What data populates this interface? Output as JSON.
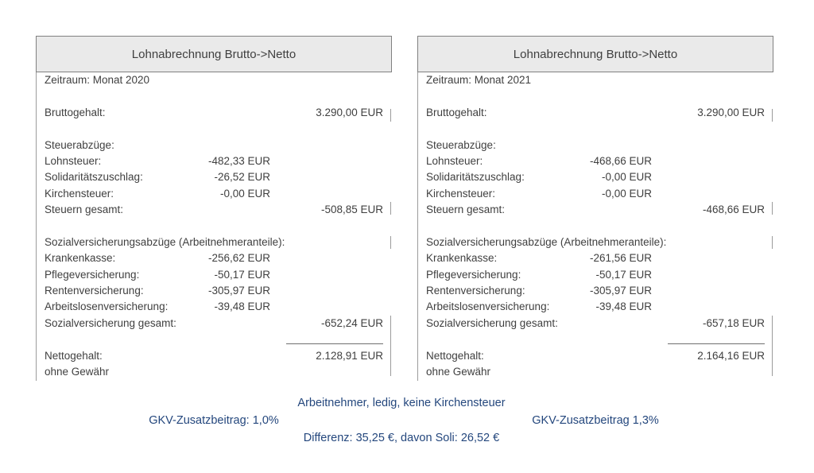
{
  "colors": {
    "annotation_blue": "#24477d",
    "header_bg": "#eaeaea",
    "border_gray": "#808080",
    "text_gray": "#3f3f3f"
  },
  "panels": [
    {
      "title": "Lohnabrechnung Brutto->Netto",
      "period": "Zeitraum: Monat 2020",
      "gross": {
        "label": "Bruttogehalt:",
        "value": "3.290,00 EUR"
      },
      "tax_section": {
        "header": "Steuerabzüge:",
        "items": [
          {
            "label": "Lohnsteuer:",
            "value": "-482,33 EUR"
          },
          {
            "label": "Solidaritätszuschlag:",
            "value": "-26,52 EUR"
          },
          {
            "label": "Kirchensteuer:",
            "value": "-0,00 EUR"
          }
        ],
        "total": {
          "label": "Steuern gesamt:",
          "value": "-508,85 EUR"
        }
      },
      "social_section": {
        "header": "Sozialversicherungsabzüge (Arbeitnehmeranteile):",
        "items": [
          {
            "label": "Krankenkasse:",
            "value": "-256,62 EUR"
          },
          {
            "label": "Pflegeversicherung:",
            "value": "-50,17 EUR"
          },
          {
            "label": "Rentenversicherung:",
            "value": "-305,97 EUR"
          },
          {
            "label": "Arbeitslosenversicherung:",
            "value": "-39,48 EUR"
          }
        ],
        "total": {
          "label": "Sozialversicherung gesamt:",
          "value": "-652,24 EUR"
        }
      },
      "net": {
        "label": "Nettogehalt:",
        "value": "2.128,91 EUR"
      },
      "disclaimer": "ohne Gewähr"
    },
    {
      "title": "Lohnabrechnung Brutto->Netto",
      "period": "Zeitraum: Monat 2021",
      "gross": {
        "label": "Bruttogehalt:",
        "value": "3.290,00 EUR"
      },
      "tax_section": {
        "header": "Steuerabzüge:",
        "items": [
          {
            "label": "Lohnsteuer:",
            "value": "-468,66 EUR"
          },
          {
            "label": "Solidaritätszuschlag:",
            "value": "-0,00 EUR"
          },
          {
            "label": "Kirchensteuer:",
            "value": "-0,00 EUR"
          }
        ],
        "total": {
          "label": "Steuern gesamt:",
          "value": "-468,66 EUR"
        }
      },
      "social_section": {
        "header": "Sozialversicherungsabzüge (Arbeitnehmeranteile):",
        "items": [
          {
            "label": "Krankenkasse:",
            "value": "-261,56 EUR"
          },
          {
            "label": "Pflegeversicherung:",
            "value": "-50,17 EUR"
          },
          {
            "label": "Rentenversicherung:",
            "value": "-305,97 EUR"
          },
          {
            "label": "Arbeitslosenversicherung:",
            "value": "-39,48 EUR"
          }
        ],
        "total": {
          "label": "Sozialversicherung gesamt:",
          "value": "-657,18 EUR"
        }
      },
      "net": {
        "label": "Nettogehalt:",
        "value": "2.164,16 EUR"
      },
      "disclaimer": "ohne Gewähr"
    }
  ],
  "footer": {
    "line1": "Arbeitnehmer, ledig, keine Kirchensteuer",
    "left_note": "GKV-Zusatzbeitrag: 1,0%",
    "right_note": "GKV-Zusatzbeitrag 1,3%",
    "line3": "Differenz: 35,25 €, davon Soli: 26,52 €"
  }
}
